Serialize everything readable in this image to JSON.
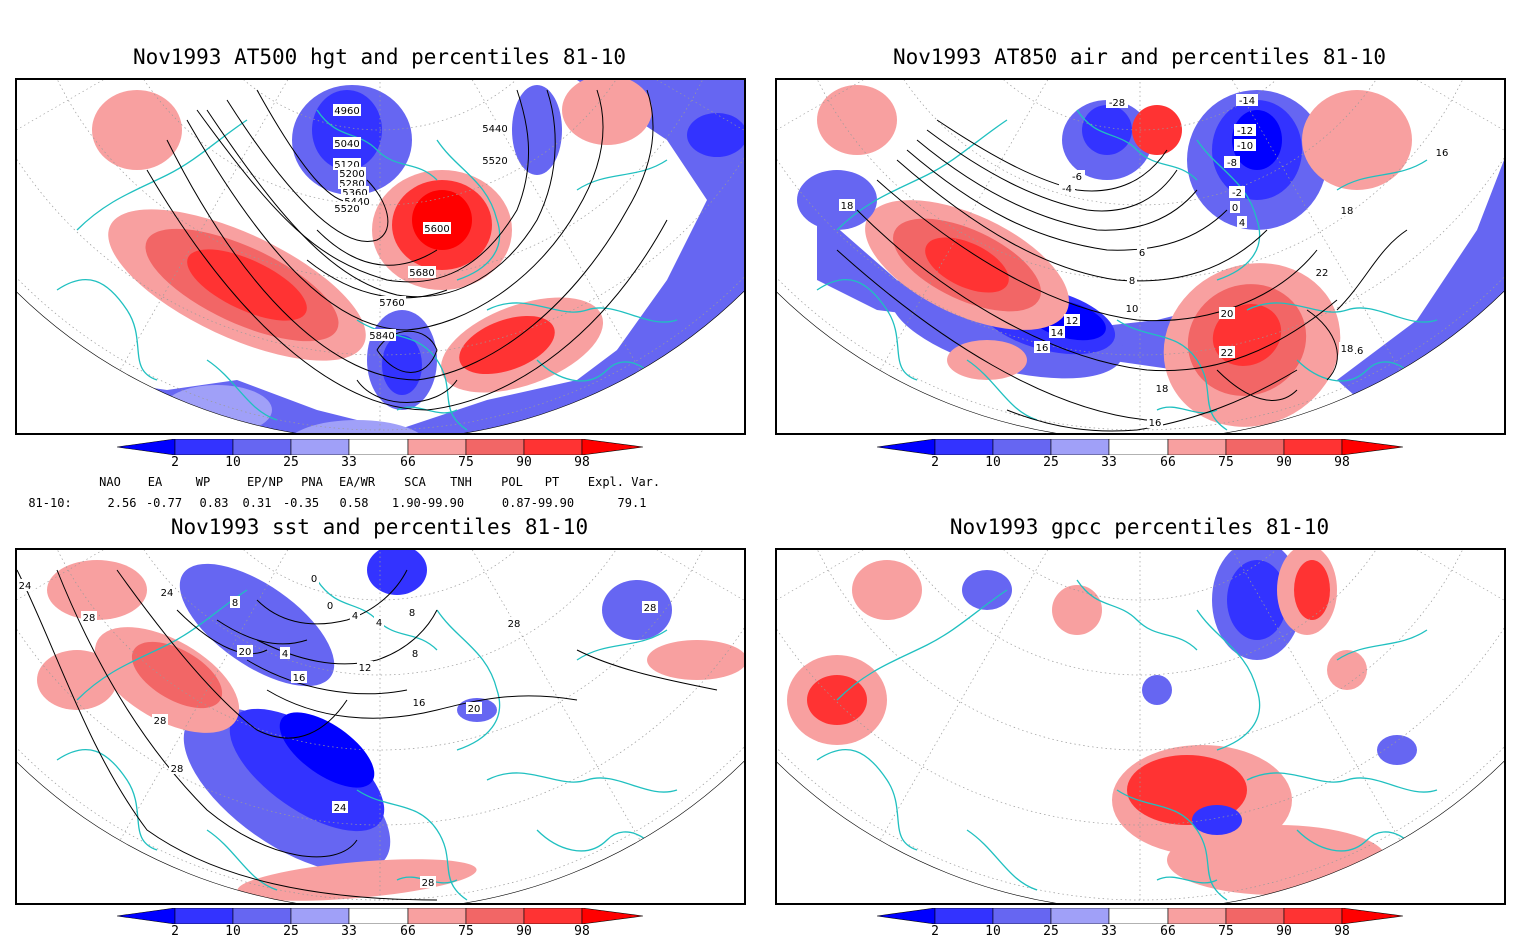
{
  "panels": [
    {
      "title": "Nov1993 AT500 hgt and percentiles 81-10",
      "contour_labels": [
        "4960",
        "5040",
        "5120",
        "5200",
        "5280",
        "5360",
        "5440",
        "5520",
        "5440",
        "5520",
        "5600",
        "5680",
        "5760",
        "5840"
      ]
    },
    {
      "title": "Nov1993 AT850 air and percentiles 81-10",
      "contour_labels": [
        "-28",
        "-14",
        "-12",
        "-10",
        "-8",
        "-6",
        "-4",
        "-2",
        "0",
        "4",
        "6",
        "8",
        "10",
        "12",
        "14",
        "16",
        "18",
        "16",
        "18",
        "20",
        "22",
        "18",
        "16",
        "16",
        "18",
        "22"
      ]
    },
    {
      "title": "Nov1993 sst and percentiles 81-10",
      "contour_labels": [
        "24",
        "28",
        "24",
        "8",
        "0",
        "0",
        "4",
        "4",
        "8",
        "20",
        "4",
        "12",
        "8",
        "16",
        "16",
        "20",
        "28",
        "28",
        "24",
        "28",
        "28",
        "28"
      ]
    },
    {
      "title": "Nov1993 gpcc percentiles 81-10",
      "contour_labels": []
    }
  ],
  "colorbar": {
    "labels": [
      "2",
      "10",
      "25",
      "33",
      "66",
      "75",
      "90",
      "98"
    ],
    "colors": {
      "p2": "#0000ff",
      "p10": "#3333ff",
      "p25": "#6666f2",
      "p33": "#a0a0f8",
      "p66": "#f8a0a0",
      "p75": "#f26666",
      "p90": "#ff3333",
      "p98": "#ff0000",
      "neutral": "#ffffff"
    }
  },
  "indices": {
    "headers": [
      "NAO",
      "EA",
      "WP",
      "EP/NP",
      "PNA",
      "EA/WR",
      "SCA",
      "TNH",
      "POL",
      "PT",
      "Expl. Var."
    ],
    "row_label": "81-10:",
    "values": [
      "2.56",
      "-0.77",
      "0.83",
      "0.31",
      "-0.35",
      "0.58",
      "1.90-99.90",
      "0.87-99.90",
      "79.1"
    ]
  },
  "map_colors": {
    "coast": "#20c0c0",
    "grid": "#9a9a9a",
    "contour": "#000000"
  }
}
